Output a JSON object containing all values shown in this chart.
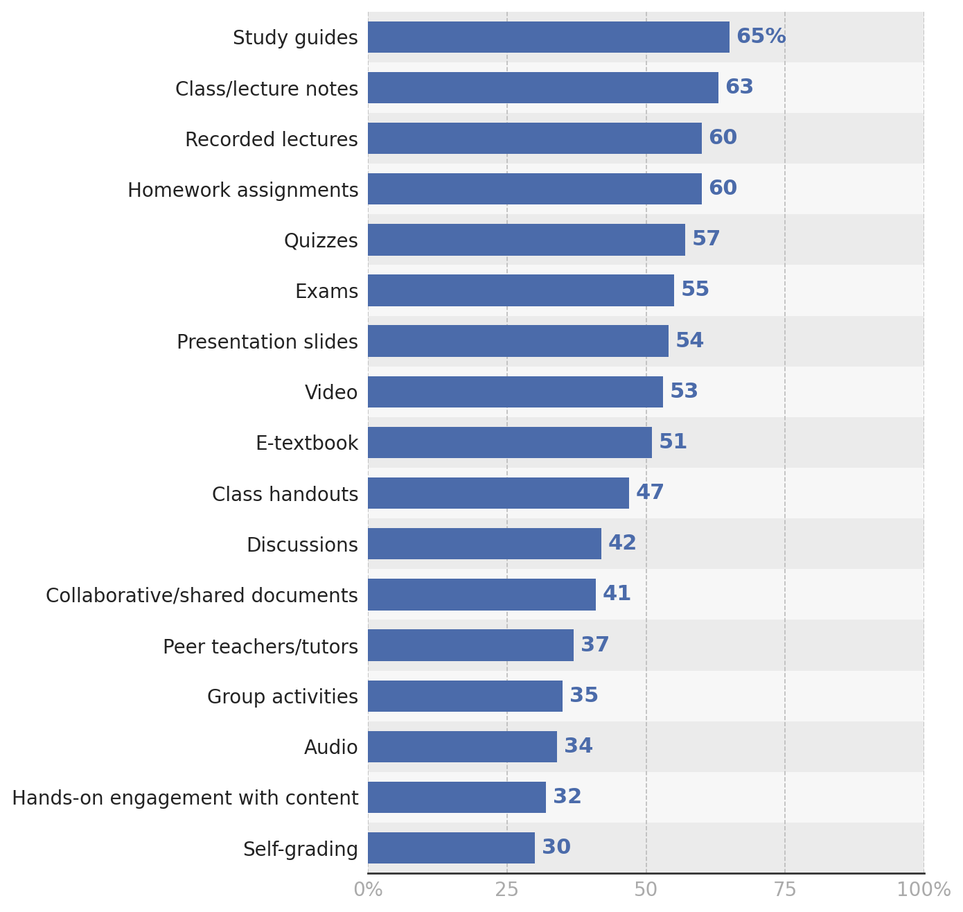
{
  "categories": [
    "Study guides",
    "Class/lecture notes",
    "Recorded lectures",
    "Homework assignments",
    "Quizzes",
    "Exams",
    "Presentation slides",
    "Video",
    "E-textbook",
    "Class handouts",
    "Discussions",
    "Collaborative/shared documents",
    "Peer teachers/tutors",
    "Group activities",
    "Audio",
    "Hands-on engagement with content",
    "Self-grading"
  ],
  "values": [
    65,
    63,
    60,
    60,
    57,
    55,
    54,
    53,
    51,
    47,
    42,
    41,
    37,
    35,
    34,
    32,
    30
  ],
  "labels": [
    "65%",
    "63",
    "60",
    "60",
    "57",
    "55",
    "54",
    "53",
    "51",
    "47",
    "42",
    "41",
    "37",
    "35",
    "34",
    "32",
    "30"
  ],
  "bar_color": "#4b6baa",
  "label_color": "#4b6baa",
  "row_color_even": "#ebebeb",
  "row_color_odd": "#f7f7f7",
  "bar_height": 0.62,
  "xlim": [
    0,
    100
  ],
  "xticks": [
    0,
    25,
    50,
    75,
    100
  ],
  "xticklabels": [
    "0%",
    "25",
    "50",
    "75",
    "100%"
  ],
  "xtick_color": "#aaaaaa",
  "gridline_color": "#bbbbbb",
  "tick_fontsize": 20,
  "category_fontsize": 20,
  "value_label_fontsize": 22
}
